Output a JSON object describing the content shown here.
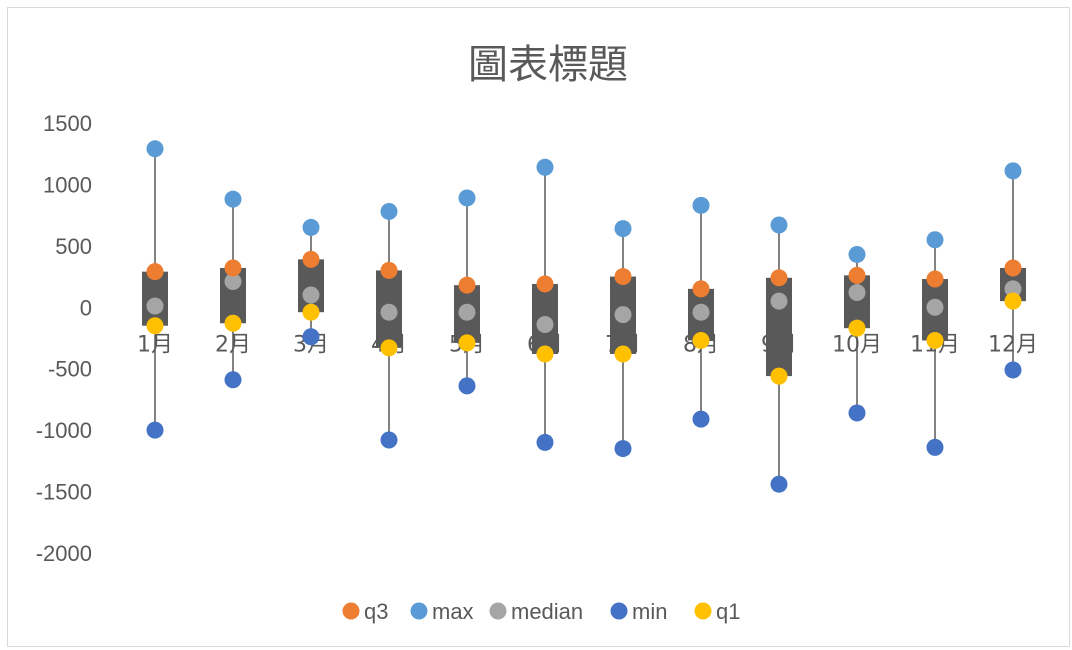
{
  "chart_data": {
    "type": "scatter",
    "title": "圖表標題",
    "xlabel": "",
    "ylabel": "",
    "ylim": [
      -2000,
      1500
    ],
    "yticks": [
      1500,
      1000,
      500,
      0,
      -500,
      -1000,
      -1500,
      -2000
    ],
    "grid": false,
    "legend_position": "bottom",
    "categories": [
      "1月",
      "2月",
      "3月",
      "4月",
      "5月",
      "6月",
      "7月",
      "8月",
      "9月",
      "10月",
      "11月",
      "12月"
    ],
    "series": [
      {
        "name": "q3",
        "color": "#ed7d31",
        "values": [
          290,
          320,
          390,
          300,
          180,
          190,
          250,
          150,
          240,
          260,
          230,
          320
        ]
      },
      {
        "name": "max",
        "color": "#5b9bd5",
        "values": [
          1290,
          880,
          650,
          780,
          890,
          1140,
          640,
          830,
          670,
          430,
          550,
          1110
        ]
      },
      {
        "name": "median",
        "color": "#a5a5a5",
        "values": [
          10,
          210,
          100,
          -40,
          -40,
          -140,
          -60,
          -40,
          50,
          120,
          0,
          150
        ]
      },
      {
        "name": "min",
        "color": "#4472c4",
        "values": [
          -1000,
          -590,
          -240,
          -1080,
          -640,
          -1100,
          -1150,
          -910,
          -1440,
          -860,
          -1140,
          -510
        ]
      },
      {
        "name": "q1",
        "color": "#ffc000",
        "values": [
          -150,
          -130,
          -40,
          -330,
          -290,
          -380,
          -380,
          -270,
          -560,
          -170,
          -270,
          50
        ]
      }
    ],
    "box_color": "#595959",
    "whisker_color": "#595959"
  }
}
